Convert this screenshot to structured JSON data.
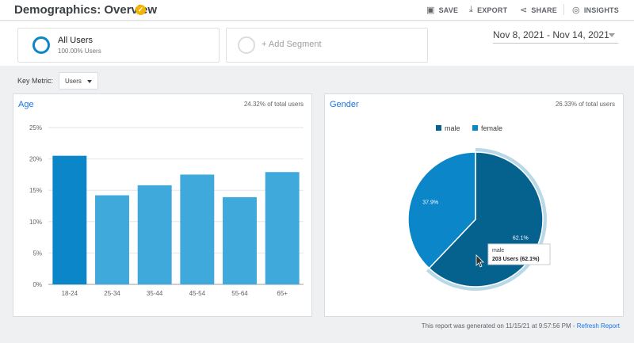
{
  "header": {
    "title": "Demographics: Overview",
    "actions": {
      "save": "SAVE",
      "export": "EXPORT",
      "share": "SHARE",
      "insights": "INSIGHTS"
    }
  },
  "segments": {
    "active": {
      "name": "All Users",
      "subtitle": "100.00% Users"
    },
    "add_label": "+ Add Segment"
  },
  "date_range": "Nov 8, 2021 - Nov 14, 2021",
  "key_metric": {
    "label": "Key Metric:",
    "value": "Users"
  },
  "age_card": {
    "title": "Age",
    "meta": "24.32% of total users"
  },
  "gender_card": {
    "title": "Gender",
    "meta": "26.33% of total users"
  },
  "footer": {
    "text": "This report was generated on 11/15/21 at 9:57:56 PM - ",
    "link": "Refresh Report"
  },
  "colors": {
    "bar": "#0b87c9",
    "bar_light": "#3fa9dc",
    "male": "#05628f",
    "female": "#0b87c9",
    "accent": "#1a73e8"
  },
  "chart_data": [
    {
      "type": "bar",
      "title": "Age",
      "categories": [
        "18-24",
        "25-34",
        "35-44",
        "45-54",
        "55-64",
        "65+"
      ],
      "values": [
        20.5,
        14.2,
        15.8,
        17.5,
        13.9,
        17.9
      ],
      "ylim": [
        0,
        25
      ],
      "yticks": [
        "0%",
        "5%",
        "10%",
        "15%",
        "20%",
        "25%"
      ],
      "grid": true
    },
    {
      "type": "pie",
      "title": "Gender",
      "legend": [
        "male",
        "female"
      ],
      "legend_position": "top",
      "slices": [
        {
          "name": "male",
          "value": 62.1,
          "label": "62.1%"
        },
        {
          "name": "female",
          "value": 37.9,
          "label": "37.9%"
        }
      ],
      "tooltip": {
        "series": "male",
        "value": "203 Users (62.1%)"
      }
    }
  ]
}
